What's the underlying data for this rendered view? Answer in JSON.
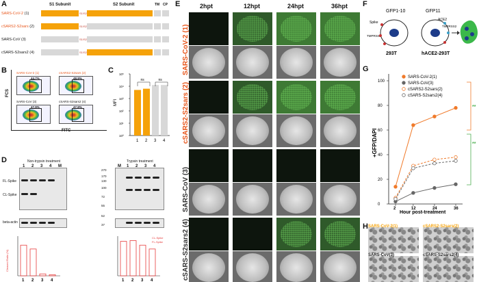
{
  "panels": {
    "A": "A",
    "B": "B",
    "C": "C",
    "D": "D",
    "E": "E",
    "F": "F",
    "G": "G",
    "H": "H"
  },
  "A": {
    "s1": "S1 Subunit",
    "s2": "S2 Subunit",
    "tm": "TM",
    "cp": "CP",
    "rows": [
      {
        "name": "SARS-CoV-2",
        "num": "(1)",
        "site": "S1/S2",
        "color": "#e8561b"
      },
      {
        "name": "cSARS2-S2sars",
        "num": "(2)",
        "site": "S1/S2",
        "color": "#e8561b"
      },
      {
        "name": "SARS-CoV",
        "num": "(3)",
        "site": "S1/S2",
        "color": "#111111"
      },
      {
        "name": "cSARS-S2sars2",
        "num": "(4)",
        "site": "S1/S2",
        "color": "#111111"
      }
    ]
  },
  "B": {
    "ylabel": "FCS",
    "xlabel": "FITC",
    "plots": [
      {
        "label": "SARS-CoV-2 (1)",
        "pct": "44.7%"
      },
      {
        "label": "cSARS2-S2sars (2)",
        "pct": "48.9%"
      },
      {
        "label": "SARS-CoV (3)",
        "pct": "47.9%"
      },
      {
        "label": "cSARS-S2sars2 (4)",
        "pct": "47.9%"
      }
    ]
  },
  "C": {
    "ylabel": "MFI",
    "ticks": [
      "10⁵",
      "10⁴",
      "10³",
      "10²",
      "10¹",
      "10⁰"
    ],
    "cats": [
      "1",
      "2",
      "3",
      "4"
    ],
    "ns": "ns"
  },
  "D": {
    "title_left": "Non-trypsin treatment",
    "title_right": "Trypsin treatment",
    "lanes": [
      "1",
      "2",
      "3",
      "4",
      "M"
    ],
    "lanes_right": [
      "M",
      "1",
      "2",
      "3",
      "4"
    ],
    "fl": "FL-Spike",
    "cl": "CL-Spike",
    "actin": "beta-actin",
    "markers": [
      "270",
      "170",
      "130",
      "100",
      "72",
      "55",
      "52",
      "37"
    ],
    "legend_cl": "CL-Spike",
    "legend_fl": "FL-Spike",
    "ylabel": "Cleaved Ratio (%)",
    "cats": [
      "1",
      "2",
      "3",
      "4"
    ]
  },
  "E": {
    "times": [
      "2hpt",
      "12hpt",
      "24hpt",
      "36hpt"
    ],
    "rows": [
      "SARS-CoV-2 (1)",
      "cSARS2-S2sars (2)",
      "SARS-CoV (3)",
      "cSARS-S2sars2 (4)"
    ]
  },
  "F": {
    "gfp1": "GFP1-10",
    "gfp2": "GFP11",
    "spike": "Spike",
    "ace2": "ACE2",
    "tmprss2": "TMPRSS2",
    "tmprss2b": "TMPRSS2",
    "cell1": "293T",
    "cell2": "hACE2-293T"
  },
  "G": {
    "ylabel": "+GFP/DAPI",
    "xlabel": "Hour post-treatment",
    "yticks": [
      "100",
      "80",
      "60",
      "40",
      "20",
      "0"
    ],
    "xticks": [
      "2",
      "12",
      "24",
      "36"
    ],
    "sig1": "**",
    "sig2": "**",
    "legend": [
      "SARS-CoV-2(1)",
      "SARS-CoV(3)",
      "cSARS2-S2sars(2)",
      "cSARS-S2sars2(4)"
    ]
  },
  "chart_data": [
    {
      "type": "bar",
      "categories": [
        "1",
        "2",
        "3",
        "4"
      ],
      "values": [
        3.7,
        3.8,
        4.1,
        4.1
      ],
      "ylabel": "MFI",
      "yscale": "log",
      "ylim": [
        0,
        5
      ]
    },
    {
      "type": "line",
      "x": [
        2,
        12,
        24,
        36
      ],
      "xlabel": "Hour post-treatment",
      "ylabel": "+GFP/DAPI",
      "ylim": [
        0,
        100
      ],
      "series": [
        {
          "name": "SARS-CoV-2(1)",
          "values": [
            14,
            64,
            71,
            78
          ],
          "color": "#f07a2a"
        },
        {
          "name": "SARS-CoV(3)",
          "values": [
            2,
            9,
            13,
            16
          ],
          "color": "#666666"
        },
        {
          "name": "cSARS2-S2sars(2)",
          "values": [
            5,
            31,
            36,
            38
          ],
          "color": "#f07a2a"
        },
        {
          "name": "cSARS-S2sars2(4)",
          "values": [
            4,
            29,
            33,
            35
          ],
          "color": "#666666"
        }
      ]
    }
  ],
  "H": {
    "labels": [
      "SARS-CoV-2(1)",
      "cSARS2-S2sars(2)",
      "SARS-CoV(3)",
      "cSARS-S2sars2(4)"
    ]
  }
}
